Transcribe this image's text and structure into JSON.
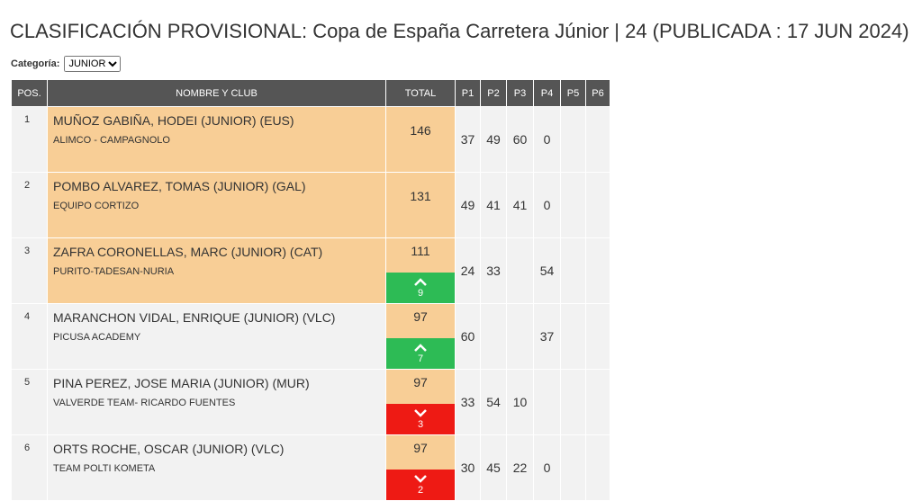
{
  "title": "CLASIFICACIÓN PROVISIONAL: Copa de España Carretera Júnior | 24 (PUBLICADA : 17 JUN 2024)",
  "filter": {
    "label": "Categoría:",
    "selected": "JUNIOR"
  },
  "table": {
    "headers": [
      "POS.",
      "NOMBRE Y CLUB",
      "TOTAL",
      "P1",
      "P2",
      "P3",
      "P4",
      "P5",
      "P6"
    ],
    "rows": [
      {
        "pos": 1,
        "name": "MUÑOZ GABIÑA, HODEI (JUNIOR) (EUS)",
        "club": "ALIMCO - CAMPAGNOLO",
        "total": 146,
        "highlight": true,
        "change": null,
        "points": [
          37,
          49,
          60,
          0,
          null,
          null
        ]
      },
      {
        "pos": 2,
        "name": "POMBO ALVAREZ, TOMAS (JUNIOR) (GAL)",
        "club": "EQUIPO CORTIZO",
        "total": 131,
        "highlight": true,
        "change": null,
        "points": [
          49,
          41,
          41,
          0,
          null,
          null
        ]
      },
      {
        "pos": 3,
        "name": "ZAFRA CORONELLAS, MARC (JUNIOR) (CAT)",
        "club": "PURITO-TADESAN-NURIA",
        "total": 111,
        "highlight": true,
        "change": {
          "dir": "up",
          "value": 9
        },
        "points": [
          24,
          33,
          null,
          54,
          null,
          null
        ]
      },
      {
        "pos": 4,
        "name": "MARANCHON VIDAL, ENRIQUE (JUNIOR) (VLC)",
        "club": "PICUSA ACADEMY",
        "total": 97,
        "highlight": false,
        "change": {
          "dir": "up",
          "value": 7
        },
        "points": [
          60,
          null,
          null,
          37,
          null,
          null
        ]
      },
      {
        "pos": 5,
        "name": "PINA PEREZ, JOSE MARIA (JUNIOR) (MUR)",
        "club": "VALVERDE TEAM- RICARDO FUENTES",
        "total": 97,
        "highlight": false,
        "change": {
          "dir": "down",
          "value": 3
        },
        "points": [
          33,
          54,
          10,
          null,
          null,
          null
        ]
      },
      {
        "pos": 6,
        "name": "ORTS ROCHE, OSCAR (JUNIOR) (VLC)",
        "club": "TEAM POLTI KOMETA",
        "total": 97,
        "highlight": false,
        "change": {
          "dir": "down",
          "value": 2
        },
        "points": [
          30,
          45,
          22,
          0,
          null,
          null
        ]
      }
    ]
  }
}
